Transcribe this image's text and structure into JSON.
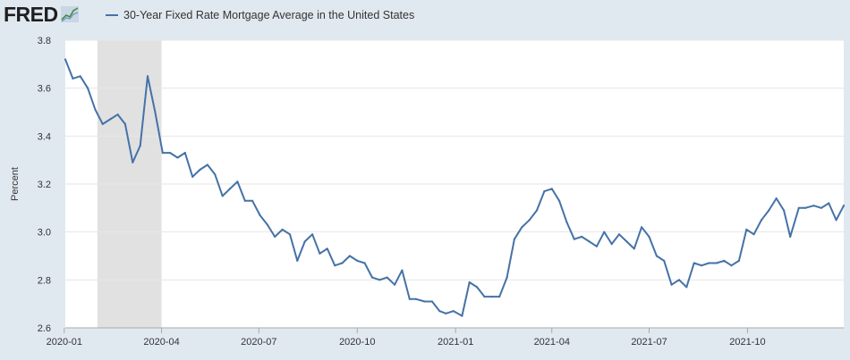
{
  "header": {
    "logo_text": "FRED",
    "legend_label": "30-Year Fixed Rate Mortgage Average in the United States"
  },
  "colors": {
    "series": "#4572a7",
    "background": "#e1e9f0",
    "plot_background": "#ffffff",
    "recession": "#e1e1e1",
    "grid": "#e6e6e6"
  },
  "chart_data": {
    "type": "line",
    "title": "",
    "xlabel": "",
    "ylabel": "Percent",
    "ylim": [
      2.6,
      3.8
    ],
    "yticks": [
      "2.6",
      "2.8",
      "3.0",
      "3.2",
      "3.4",
      "3.6",
      "3.8"
    ],
    "xticks": [
      "2020-01",
      "2020-04",
      "2020-07",
      "2020-10",
      "2021-01",
      "2021-04",
      "2021-07",
      "2021-10"
    ],
    "x_start": "2020-01-02",
    "x_end": "2021-12-30",
    "grid": true,
    "legend_position": "top-left",
    "recession_shading": [
      {
        "start": "2020-02-01",
        "end": "2020-04-01"
      }
    ],
    "series": [
      {
        "name": "30-Year Fixed Rate Mortgage Average in the United States",
        "x": [
          "2020-01-02",
          "2020-01-09",
          "2020-01-16",
          "2020-01-23",
          "2020-01-30",
          "2020-02-06",
          "2020-02-13",
          "2020-02-20",
          "2020-02-27",
          "2020-03-05",
          "2020-03-12",
          "2020-03-19",
          "2020-03-26",
          "2020-04-02",
          "2020-04-09",
          "2020-04-16",
          "2020-04-23",
          "2020-04-30",
          "2020-05-07",
          "2020-05-14",
          "2020-05-21",
          "2020-05-28",
          "2020-06-04",
          "2020-06-11",
          "2020-06-18",
          "2020-06-25",
          "2020-07-02",
          "2020-07-09",
          "2020-07-16",
          "2020-07-23",
          "2020-07-30",
          "2020-08-06",
          "2020-08-13",
          "2020-08-20",
          "2020-08-27",
          "2020-09-03",
          "2020-09-10",
          "2020-09-17",
          "2020-09-24",
          "2020-10-01",
          "2020-10-08",
          "2020-10-15",
          "2020-10-22",
          "2020-10-29",
          "2020-11-05",
          "2020-11-12",
          "2020-11-19",
          "2020-11-25",
          "2020-12-03",
          "2020-12-10",
          "2020-12-17",
          "2020-12-23",
          "2020-12-30",
          "2021-01-07",
          "2021-01-14",
          "2021-01-21",
          "2021-01-28",
          "2021-02-04",
          "2021-02-11",
          "2021-02-18",
          "2021-02-25",
          "2021-03-04",
          "2021-03-11",
          "2021-03-18",
          "2021-03-25",
          "2021-04-01",
          "2021-04-08",
          "2021-04-15",
          "2021-04-22",
          "2021-04-29",
          "2021-05-06",
          "2021-05-13",
          "2021-05-20",
          "2021-05-27",
          "2021-06-03",
          "2021-06-10",
          "2021-06-17",
          "2021-06-24",
          "2021-07-01",
          "2021-07-08",
          "2021-07-15",
          "2021-07-22",
          "2021-07-29",
          "2021-08-05",
          "2021-08-12",
          "2021-08-19",
          "2021-08-26",
          "2021-09-02",
          "2021-09-09",
          "2021-09-16",
          "2021-09-23",
          "2021-09-30",
          "2021-10-07",
          "2021-10-14",
          "2021-10-21",
          "2021-10-28",
          "2021-11-04",
          "2021-11-10",
          "2021-11-18",
          "2021-11-24",
          "2021-12-02",
          "2021-12-09",
          "2021-12-16",
          "2021-12-23",
          "2021-12-30"
        ],
        "values": [
          3.72,
          3.64,
          3.65,
          3.6,
          3.51,
          3.45,
          3.47,
          3.49,
          3.45,
          3.29,
          3.36,
          3.65,
          3.5,
          3.33,
          3.33,
          3.31,
          3.33,
          3.23,
          3.26,
          3.28,
          3.24,
          3.15,
          3.18,
          3.21,
          3.13,
          3.13,
          3.07,
          3.03,
          2.98,
          3.01,
          2.99,
          2.88,
          2.96,
          2.99,
          2.91,
          2.93,
          2.86,
          2.87,
          2.9,
          2.88,
          2.87,
          2.81,
          2.8,
          2.81,
          2.78,
          2.84,
          2.72,
          2.72,
          2.71,
          2.71,
          2.67,
          2.66,
          2.67,
          2.65,
          2.79,
          2.77,
          2.73,
          2.73,
          2.73,
          2.81,
          2.97,
          3.02,
          3.05,
          3.09,
          3.17,
          3.18,
          3.13,
          3.04,
          2.97,
          2.98,
          2.96,
          2.94,
          3.0,
          2.95,
          2.99,
          2.96,
          2.93,
          3.02,
          2.98,
          2.9,
          2.88,
          2.78,
          2.8,
          2.77,
          2.87,
          2.86,
          2.87,
          2.87,
          2.88,
          2.86,
          2.88,
          3.01,
          2.99,
          3.05,
          3.09,
          3.14,
          3.09,
          2.98,
          3.1,
          3.1,
          3.11,
          3.1,
          3.12,
          3.05,
          3.11
        ]
      }
    ]
  }
}
